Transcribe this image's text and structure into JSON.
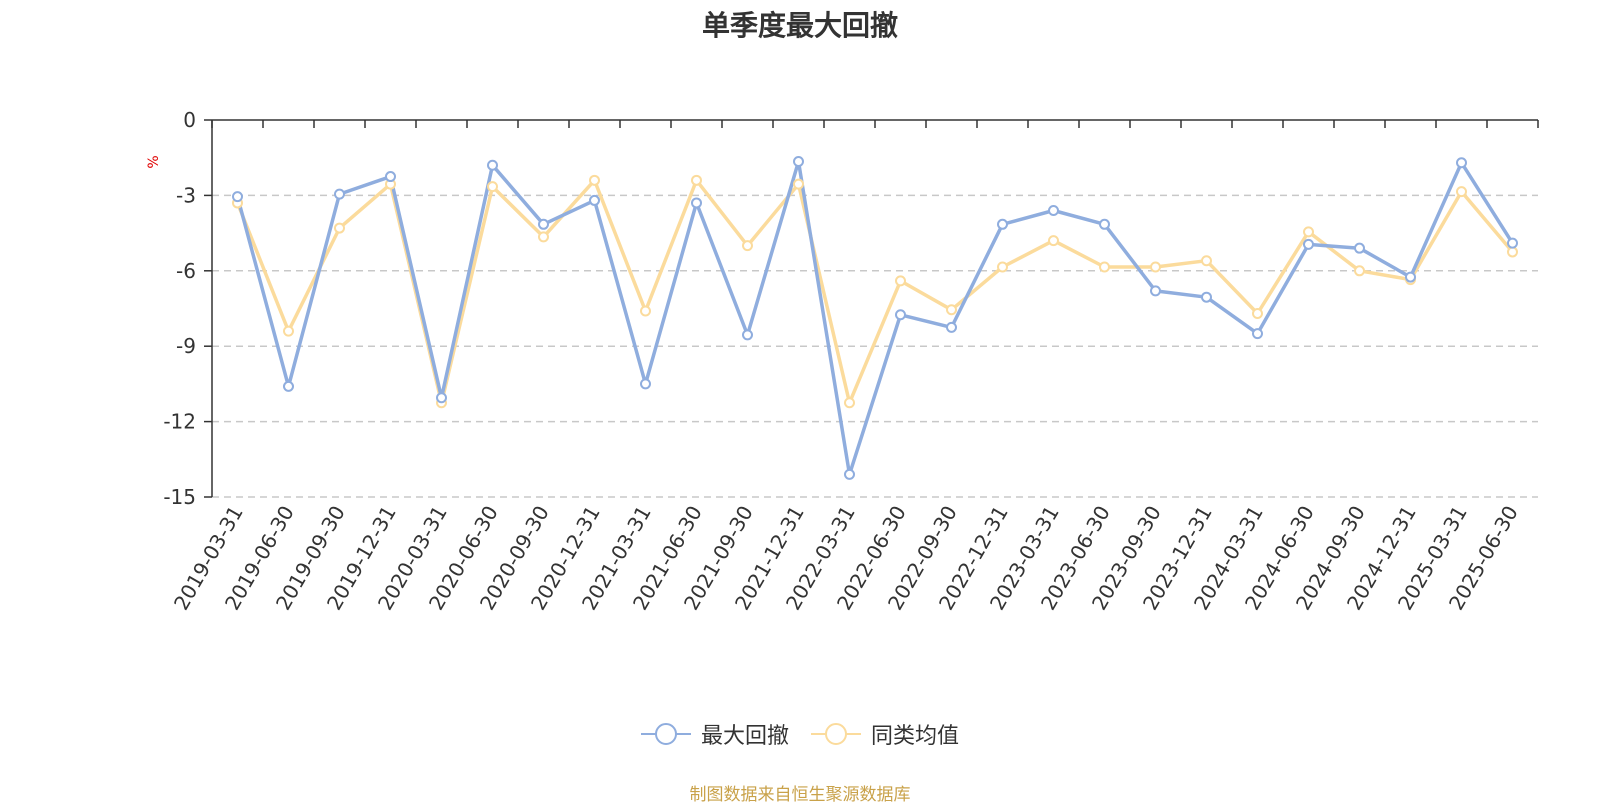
{
  "title": "单季度最大回撤",
  "source_note": "制图数据来自恒生聚源数据库",
  "colors": {
    "series_1": "#8fadde",
    "series_2": "#fbdb9c",
    "grid": "#c8c8c8",
    "axis": "#333333",
    "unit": "#e00000",
    "source": "#c9a24a"
  },
  "chart_data": {
    "type": "line",
    "title": "单季度最大回撤",
    "ylabel": "%",
    "xlabel": "",
    "ylim": [
      -15,
      0
    ],
    "yticks": [
      0,
      -3,
      -6,
      -9,
      -12,
      -15
    ],
    "grid": true,
    "legend_position": "bottom-center",
    "x": [
      "2019-03-31",
      "2019-06-30",
      "2019-09-30",
      "2019-12-31",
      "2020-03-31",
      "2020-06-30",
      "2020-09-30",
      "2020-12-31",
      "2021-03-31",
      "2021-06-30",
      "2021-09-30",
      "2021-12-31",
      "2022-03-31",
      "2022-06-30",
      "2022-09-30",
      "2022-12-31",
      "2023-03-31",
      "2023-06-30",
      "2023-09-30",
      "2023-12-31",
      "2024-03-31",
      "2024-06-30",
      "2024-09-30",
      "2024-12-31",
      "2025-03-31",
      "2025-06-30"
    ],
    "series": [
      {
        "name": "最大回撤",
        "values": [
          -3.05,
          -10.6,
          -2.95,
          -2.25,
          -11.05,
          -1.8,
          -4.15,
          -3.2,
          -10.5,
          -3.3,
          -8.55,
          -1.65,
          -14.1,
          -7.75,
          -8.25,
          -4.15,
          -3.6,
          -4.15,
          -6.8,
          -7.05,
          -8.5,
          -4.95,
          -5.1,
          -6.25,
          -1.7,
          -4.9
        ]
      },
      {
        "name": "同类均值",
        "values": [
          -3.3,
          -8.4,
          -4.3,
          -2.55,
          -11.25,
          -2.65,
          -4.65,
          -2.4,
          -7.6,
          -2.4,
          -5.0,
          -2.55,
          -11.25,
          -6.4,
          -7.55,
          -5.85,
          -4.8,
          -5.85,
          -5.85,
          -5.6,
          -7.7,
          -4.45,
          -6.0,
          -6.35,
          -2.85,
          -5.25
        ]
      }
    ]
  }
}
